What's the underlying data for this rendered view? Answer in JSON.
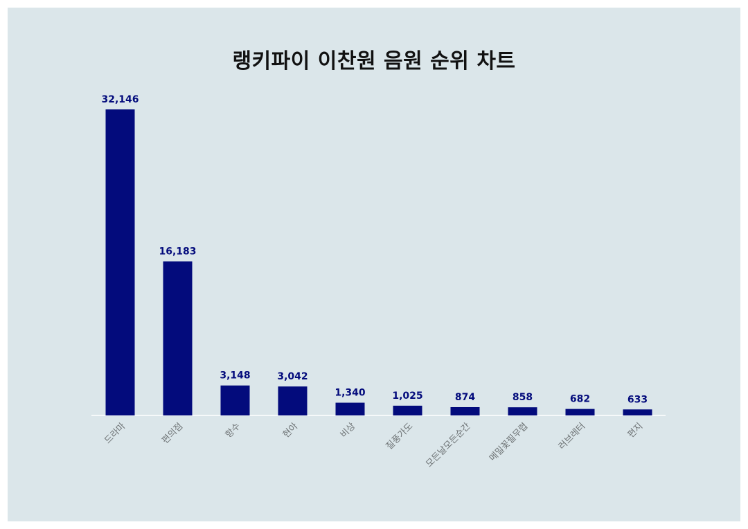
{
  "chart_data": {
    "type": "bar",
    "title": "랭키파이 이찬원 음원 순위 차트",
    "xlabel": "",
    "ylabel": "",
    "categories": [
      "드라마",
      "편의점",
      "항수",
      "현아",
      "비상",
      "질풍가도",
      "모든날모든순간",
      "메밀꽃필무렵",
      "러브레터",
      "편지"
    ],
    "values": [
      32146,
      16183,
      3148,
      3042,
      1340,
      1025,
      874,
      858,
      682,
      633
    ],
    "value_labels": [
      "32,146",
      "16,183",
      "3,148",
      "3,042",
      "1,340",
      "1,025",
      "874",
      "858",
      "682",
      "633"
    ],
    "ylim": [
      0,
      32146
    ],
    "grid": false,
    "legend": "none",
    "colors": {
      "bar": "#030b7c",
      "value_label": "#030b7c",
      "tick_label": "#6e7375",
      "baseline": "#ffffff",
      "background": "#dbe6ea",
      "title": "#111111"
    }
  }
}
